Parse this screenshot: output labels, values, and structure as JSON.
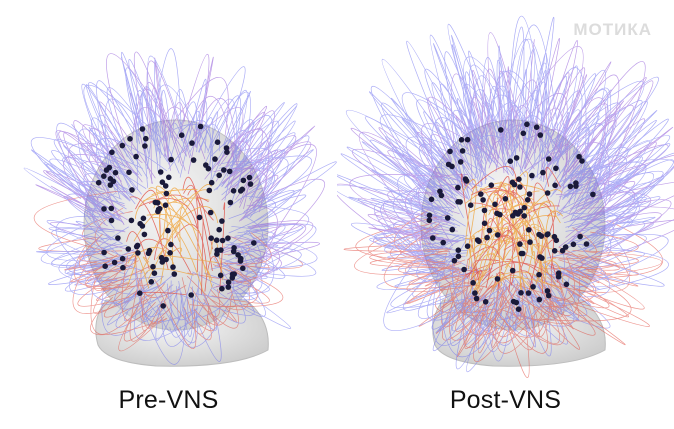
{
  "watermark": "МОТИКА",
  "panels": [
    {
      "key": "pre",
      "label": "Pre-VNS",
      "connectivity": 0.45,
      "warmth": 0.25
    },
    {
      "key": "post",
      "label": "Post-VNS",
      "connectivity": 1.0,
      "warmth": 0.8
    }
  ],
  "colors": {
    "background": "#ffffff",
    "head": "#e8e8e8",
    "head_shadow": "#c9c9c9",
    "electrode": "#1a1a3a",
    "cool_link": "#6a6cf0",
    "mid_link": "#8a4fd6",
    "warm_link": "#e0453a",
    "hot_link": "#f0a030",
    "caption_text": "#111111",
    "watermark": "#dcdcdc"
  }
}
